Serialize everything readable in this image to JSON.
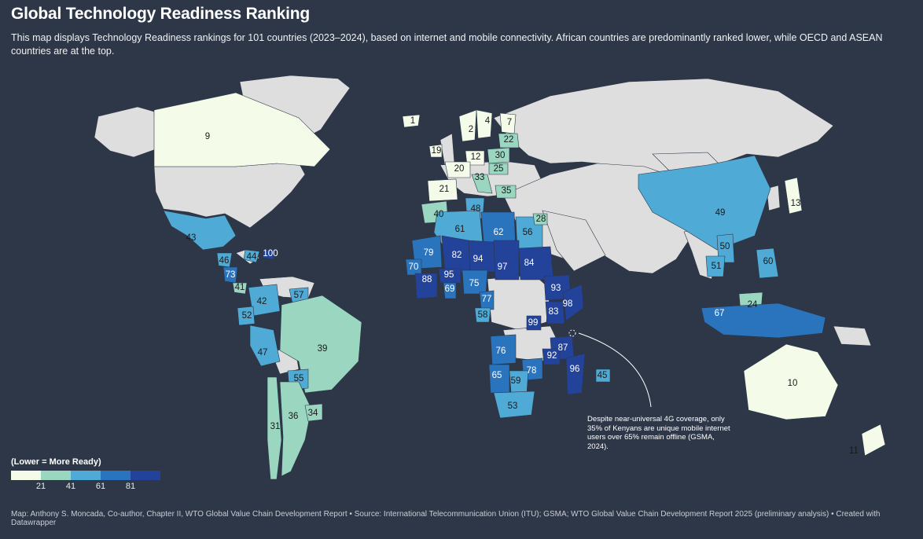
{
  "header": {
    "title": "Global Technology Readiness Ranking",
    "subtitle": "This map displays Technology Readiness rankings for 101 countries (2023–2024), based on internet and mobile connectivity. African countries are predominantly ranked lower, while OECD and ASEAN countries are at the top."
  },
  "colors": {
    "background": "#2d3748",
    "no_data": "#dedede",
    "scale": [
      "#f4fbe9",
      "#9ad6c0",
      "#4fabd6",
      "#2a74bd",
      "#23429a"
    ]
  },
  "legend": {
    "title": "(Lower = More Ready)",
    "breaks": [
      "21",
      "41",
      "61",
      "81"
    ]
  },
  "regions": [
    {
      "name": "Canada",
      "rank": 9
    },
    {
      "name": "United States",
      "rank": null
    },
    {
      "name": "Mexico",
      "rank": 43
    },
    {
      "name": "Guatemala",
      "rank": 46
    },
    {
      "name": "Dominican Republic",
      "rank": 44
    },
    {
      "name": "Puerto Rico",
      "rank": 100
    },
    {
      "name": "Costa Rica",
      "rank": 73
    },
    {
      "name": "Panama",
      "rank": 41
    },
    {
      "name": "Colombia",
      "rank": 42
    },
    {
      "name": "Guyana",
      "rank": 57
    },
    {
      "name": "Ecuador",
      "rank": 52
    },
    {
      "name": "Peru",
      "rank": 47
    },
    {
      "name": "Brazil",
      "rank": 39
    },
    {
      "name": "Paraguay",
      "rank": 55
    },
    {
      "name": "Chile",
      "rank": 31
    },
    {
      "name": "Argentina",
      "rank": 36
    },
    {
      "name": "Uruguay",
      "rank": 34
    },
    {
      "name": "Iceland",
      "rank": 1
    },
    {
      "name": "Norway",
      "rank": 2
    },
    {
      "name": "Sweden",
      "rank": 4
    },
    {
      "name": "Finland",
      "rank": 7
    },
    {
      "name": "Estonia",
      "rank": 22
    },
    {
      "name": "Ireland",
      "rank": 19
    },
    {
      "name": "Germany",
      "rank": 12
    },
    {
      "name": "Poland",
      "rank": 30
    },
    {
      "name": "France",
      "rank": 20
    },
    {
      "name": "Hungary",
      "rank": 25
    },
    {
      "name": "Italy",
      "rank": 33
    },
    {
      "name": "Greece",
      "rank": 35
    },
    {
      "name": "Spain",
      "rank": 21
    },
    {
      "name": "Morocco",
      "rank": 40
    },
    {
      "name": "Tunisia",
      "rank": 48
    },
    {
      "name": "Algeria",
      "rank": 61
    },
    {
      "name": "Libya",
      "rank": 62
    },
    {
      "name": "Egypt",
      "rank": 56
    },
    {
      "name": "Jordan",
      "rank": 28
    },
    {
      "name": "Mauritania",
      "rank": 79
    },
    {
      "name": "Mali",
      "rank": 82
    },
    {
      "name": "Niger",
      "rank": 94
    },
    {
      "name": "Chad",
      "rank": 97
    },
    {
      "name": "Sudan",
      "rank": 84
    },
    {
      "name": "Senegal",
      "rank": 70
    },
    {
      "name": "Guinea",
      "rank": 88
    },
    {
      "name": "Burkina Faso",
      "rank": 95
    },
    {
      "name": "Ghana",
      "rank": 69
    },
    {
      "name": "Nigeria",
      "rank": 75
    },
    {
      "name": "Cameroon",
      "rank": 77
    },
    {
      "name": "Gabon",
      "rank": 58
    },
    {
      "name": "Ethiopia",
      "rank": 93
    },
    {
      "name": "Somalia",
      "rank": 98
    },
    {
      "name": "Kenya",
      "rank": 83
    },
    {
      "name": "Rwanda",
      "rank": 99
    },
    {
      "name": "Tanzania",
      "rank": 87
    },
    {
      "name": "Angola",
      "rank": 76
    },
    {
      "name": "Malawi",
      "rank": 92
    },
    {
      "name": "Zambia",
      "rank": 78
    },
    {
      "name": "Namibia",
      "rank": 65
    },
    {
      "name": "Botswana",
      "rank": 59
    },
    {
      "name": "South Africa",
      "rank": 53
    },
    {
      "name": "Madagascar",
      "rank": 96
    },
    {
      "name": "Mauritius",
      "rank": 45
    },
    {
      "name": "China",
      "rank": 49
    },
    {
      "name": "Japan",
      "rank": 13
    },
    {
      "name": "Vietnam",
      "rank": 50
    },
    {
      "name": "Cambodia",
      "rank": 51
    },
    {
      "name": "Philippines",
      "rank": 60
    },
    {
      "name": "Malaysia",
      "rank": 24
    },
    {
      "name": "Indonesia",
      "rank": 67
    },
    {
      "name": "Australia",
      "rank": 10
    },
    {
      "name": "New Zealand",
      "rank": 11
    }
  ],
  "annotation": {
    "text": "Despite near-universal 4G coverage, only 35% of Kenyans are unique mobile internet users over 65% remain offline (GSMA, 2024)."
  },
  "footer": {
    "text": "Map: Anthony S. Moncada, Co-author, Chapter II, WTO Global Value Chain Development Report • Source: International Telecommunication Union (ITU); GSMA; WTO Global Value Chain Development Report 2025 (preliminary analysis) • Created with Datawrapper"
  }
}
